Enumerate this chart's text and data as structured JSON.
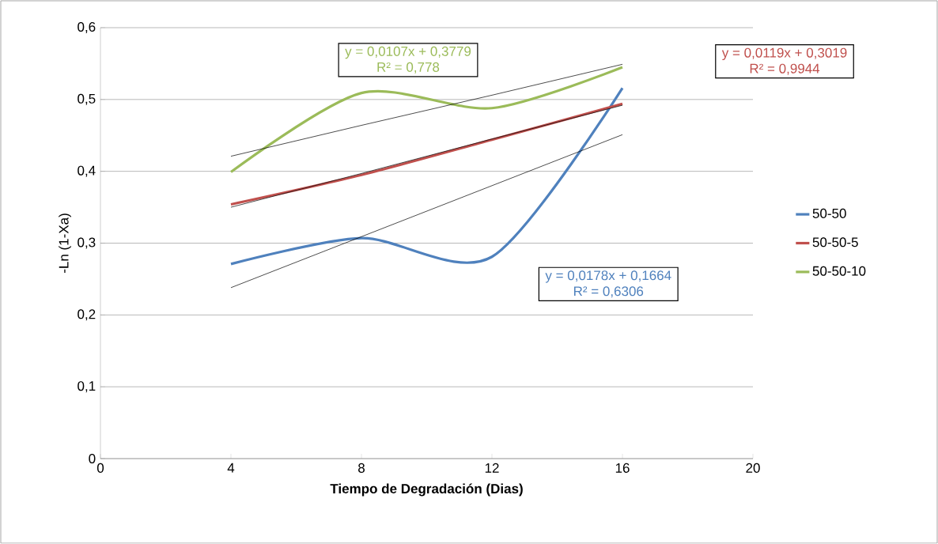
{
  "chart_data": {
    "type": "line",
    "xlabel": "Tiempo de Degradación (Dias)",
    "ylabel": "-Ln (1-Xa)",
    "x": [
      4,
      8,
      12,
      16
    ],
    "series": [
      {
        "name": "50-50",
        "color": "#4f81bd",
        "values": [
          0.271,
          0.307,
          0.281,
          0.516
        ]
      },
      {
        "name": "50-50-5",
        "color": "#c0504d",
        "values": [
          0.354,
          0.395,
          0.444,
          0.494
        ]
      },
      {
        "name": "50-50-10",
        "color": "#9bbb59",
        "values": [
          0.399,
          0.509,
          0.488,
          0.545
        ]
      },
      {
        "type": "line",
        "color": "#000000",
        "values": [
          0.238,
          0.309,
          0.38,
          0.451
        ]
      },
      {
        "type": "line",
        "color": "#000000",
        "values": [
          0.35,
          0.397,
          0.445,
          0.492
        ]
      },
      {
        "type": "line",
        "color": "#000000",
        "values": [
          0.421,
          0.464,
          0.506,
          0.549
        ]
      }
    ],
    "annotations": [
      "y = 0,0178x + 0,1664",
      "R² = 0,6306",
      "y = 0,0119x + 0,3019",
      "R² = 0,9944",
      "y = 0,0107x + 0,3779",
      "R² = 0,778"
    ],
    "xlim": [
      0,
      20
    ],
    "ylim": [
      0,
      0.6
    ],
    "xticks": [
      0,
      4,
      8,
      12,
      16,
      20
    ],
    "yticks": [
      0,
      {
        "value": 0.1,
        "label": "0,1"
      },
      {
        "value": 0.2,
        "label": "0,2"
      },
      {
        "value": 0.3,
        "label": "0,3"
      },
      {
        "value": 0.4,
        "label": "0,4"
      },
      {
        "value": 0.5,
        "label": "0,5"
      },
      {
        "value": 0.6,
        "label": "0,6"
      }
    ],
    "grid": "y",
    "legend": "right",
    "marker": "none",
    "line_style": "solid"
  }
}
